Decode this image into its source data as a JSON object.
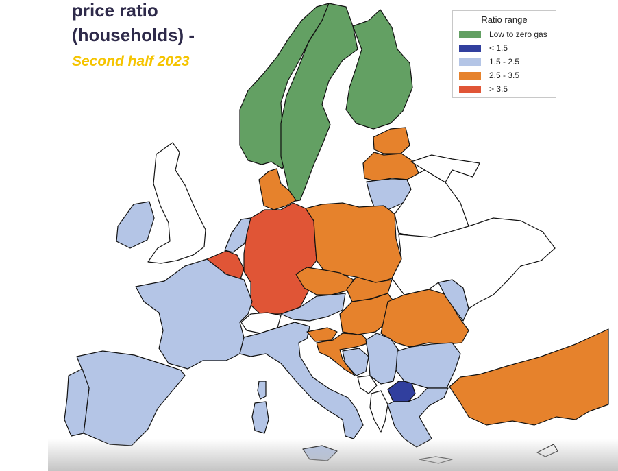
{
  "title": {
    "line1": "price ratio",
    "line2": "(households) -",
    "subtitle": "Second half  2023"
  },
  "legend": {
    "title": "Ratio range",
    "items": [
      {
        "label": "Low to zero gas",
        "color": "#63a063"
      },
      {
        "label": "< 1.5",
        "color": "#313f9e"
      },
      {
        "label": "1.5 - 2.5",
        "color": "#b4c5e6"
      },
      {
        "label": "2.5 - 3.5",
        "color": "#e6822c"
      },
      {
        "label": "> 3.5",
        "color": "#e05536"
      }
    ]
  },
  "colors": {
    "low_zero": "#63a063",
    "lt_1_5": "#313f9e",
    "r1_5_2_5": "#b4c5e6",
    "r2_5_3_5": "#e6822c",
    "gt_3_5": "#e05536",
    "no_data": "#ffffff",
    "border": "#111111"
  },
  "regions": [
    {
      "name": "norway",
      "category": "low_zero"
    },
    {
      "name": "sweden",
      "category": "low_zero"
    },
    {
      "name": "finland",
      "category": "low_zero"
    },
    {
      "name": "estonia",
      "category": "r2_5_3_5"
    },
    {
      "name": "latvia",
      "category": "r2_5_3_5"
    },
    {
      "name": "lithuania",
      "category": "r1_5_2_5"
    },
    {
      "name": "denmark",
      "category": "r2_5_3_5"
    },
    {
      "name": "ireland",
      "category": "r1_5_2_5"
    },
    {
      "name": "united-kingdom",
      "category": "no_data"
    },
    {
      "name": "netherlands",
      "category": "r1_5_2_5"
    },
    {
      "name": "belgium",
      "category": "gt_3_5"
    },
    {
      "name": "germany",
      "category": "gt_3_5"
    },
    {
      "name": "poland",
      "category": "r2_5_3_5"
    },
    {
      "name": "czechia",
      "category": "r2_5_3_5"
    },
    {
      "name": "slovakia",
      "category": "r2_5_3_5"
    },
    {
      "name": "austria",
      "category": "r1_5_2_5"
    },
    {
      "name": "switzerland",
      "category": "no_data"
    },
    {
      "name": "france",
      "category": "r1_5_2_5"
    },
    {
      "name": "spain",
      "category": "r1_5_2_5"
    },
    {
      "name": "portugal",
      "category": "r1_5_2_5"
    },
    {
      "name": "italy",
      "category": "r1_5_2_5"
    },
    {
      "name": "slovenia",
      "category": "r2_5_3_5"
    },
    {
      "name": "croatia",
      "category": "r2_5_3_5"
    },
    {
      "name": "hungary",
      "category": "r2_5_3_5"
    },
    {
      "name": "romania",
      "category": "r2_5_3_5"
    },
    {
      "name": "moldova",
      "category": "r1_5_2_5"
    },
    {
      "name": "bosnia",
      "category": "r1_5_2_5"
    },
    {
      "name": "serbia",
      "category": "r1_5_2_5"
    },
    {
      "name": "bulgaria",
      "category": "r1_5_2_5"
    },
    {
      "name": "north-macedonia",
      "category": "lt_1_5"
    },
    {
      "name": "albania",
      "category": "no_data"
    },
    {
      "name": "montenegro",
      "category": "no_data"
    },
    {
      "name": "greece",
      "category": "r1_5_2_5"
    },
    {
      "name": "turkey",
      "category": "r2_5_3_5"
    },
    {
      "name": "belarus",
      "category": "no_data"
    },
    {
      "name": "ukraine",
      "category": "no_data"
    },
    {
      "name": "sardinia",
      "category": "r1_5_2_5"
    },
    {
      "name": "corsica",
      "category": "r1_5_2_5"
    },
    {
      "name": "sicily",
      "category": "r1_5_2_5"
    }
  ]
}
